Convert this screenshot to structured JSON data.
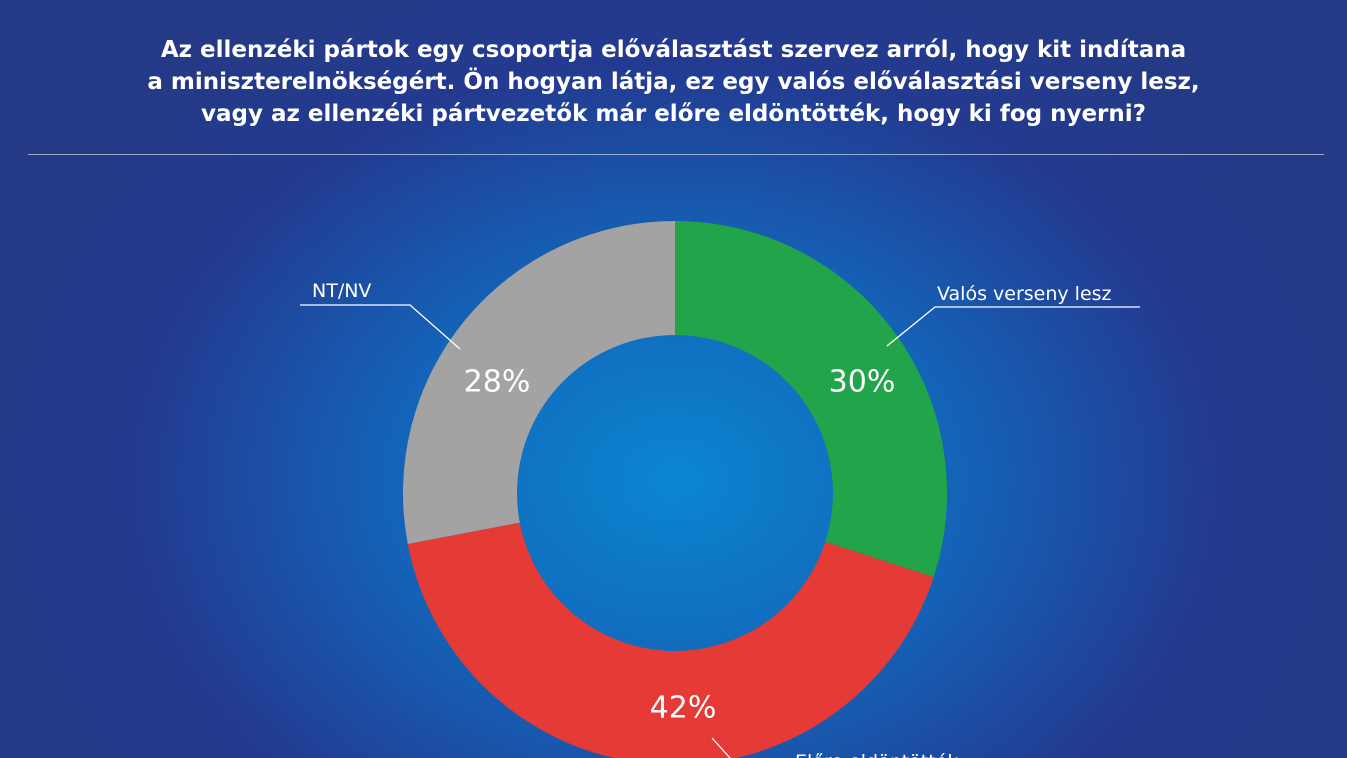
{
  "header": {
    "title_lines": [
      "Az ellenzéki pártok egy csoportja előválasztást szervez arról, hogy kit indítana",
      "a miniszterelnökségért. Ön hogyan látja, ez egy valós előválasztási verseny lesz,",
      "vagy az ellenzéki pártvezetők már előre eldöntötték, hogy ki fog nyerni?"
    ]
  },
  "chart_data": {
    "type": "pie",
    "title": "Az ellenzéki pártok egy csoportja előválasztást szervez arról, hogy kit indítana a miniszterelnökségért. Ön hogyan látja, ez egy valós előválasztási verseny lesz, vagy az ellenzéki pártvezetők már előre eldöntötték, hogy ki fog nyerni?",
    "donut": true,
    "categories": [
      "Valós verseny lesz",
      "Előre eldöntötték",
      "NT/NV"
    ],
    "values": [
      30,
      42,
      28
    ],
    "value_labels": [
      "30%",
      "42%",
      "28%"
    ],
    "colors": [
      "#22a54a",
      "#e53a36",
      "#a3a3a3"
    ],
    "start": "top",
    "direction": "clockwise"
  }
}
